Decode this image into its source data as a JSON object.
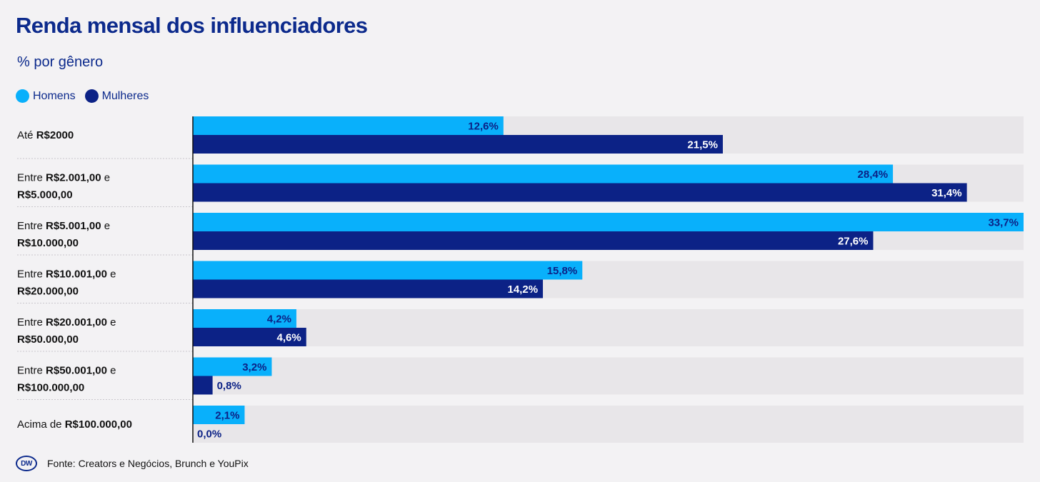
{
  "title": "Renda mensal dos influenciadores",
  "subtitle": "% por gênero",
  "legend": {
    "men_label": "Homens",
    "women_label": "Mulheres"
  },
  "colors": {
    "men": "#09b0fb",
    "women": "#0c2286",
    "track": "#e8e6e9",
    "title": "#0c2a8c"
  },
  "footer": {
    "logo_text": "DW",
    "source": "Fonte: Creators e Negócios, Brunch e YouPix"
  },
  "chart_data": {
    "type": "bar",
    "orientation": "horizontal",
    "title": "Renda mensal dos influenciadores",
    "subtitle": "% por gênero",
    "xlim": [
      0,
      33.7
    ],
    "categories": [
      {
        "prefix": "Até ",
        "line1": "R$2000",
        "suffix": "",
        "line2": ""
      },
      {
        "prefix": "Entre ",
        "line1": "R$2.001,00",
        "suffix": " e",
        "line2": "R$5.000,00"
      },
      {
        "prefix": "Entre ",
        "line1": "R$5.001,00",
        "suffix": " e",
        "line2": "R$10.000,00"
      },
      {
        "prefix": "Entre ",
        "line1": "R$10.001,00",
        "suffix": " e",
        "line2": "R$20.000,00"
      },
      {
        "prefix": "Entre ",
        "line1": "R$20.001,00",
        "suffix": " e",
        "line2": "R$50.000,00"
      },
      {
        "prefix": "Entre ",
        "line1": "R$50.001,00",
        "suffix": " e",
        "line2": "R$100.000,00"
      },
      {
        "prefix": "Acima de ",
        "line1": "R$100.000,00",
        "suffix": "",
        "line2": ""
      }
    ],
    "series": [
      {
        "name": "Homens",
        "values": [
          12.6,
          28.4,
          33.7,
          15.8,
          4.2,
          3.2,
          2.1
        ],
        "labels": [
          "12,6%",
          "28,4%",
          "33,7%",
          "15,8%",
          "4,2%",
          "3,2%",
          "2,1%"
        ]
      },
      {
        "name": "Mulheres",
        "values": [
          21.5,
          31.4,
          27.6,
          14.2,
          4.6,
          0.8,
          0.0
        ],
        "labels": [
          "21,5%",
          "31,4%",
          "27,6%",
          "14,2%",
          "4,6%",
          "0,8%",
          "0,0%"
        ]
      }
    ]
  }
}
